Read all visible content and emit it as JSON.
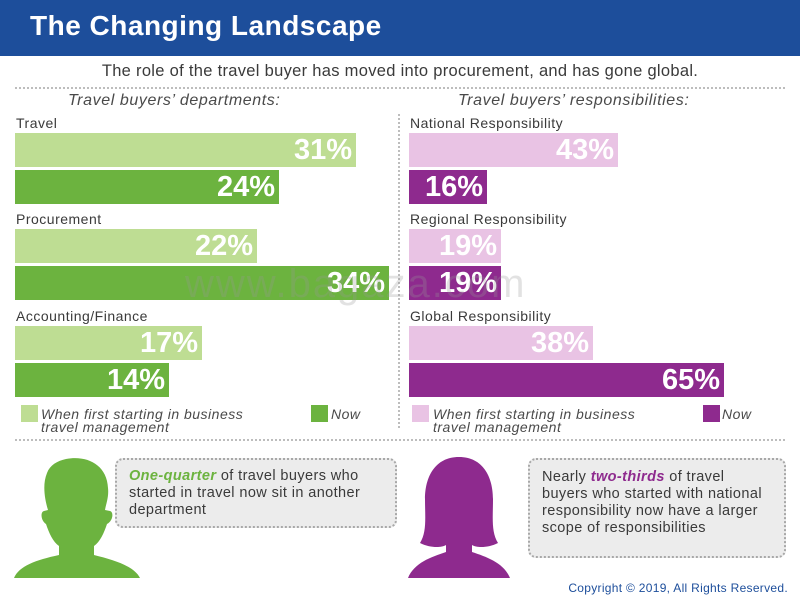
{
  "header": {
    "title": "The Changing Landscape"
  },
  "subtitle": "The role of the travel buyer has moved into procurement, and has gone global.",
  "colors": {
    "header_bg": "#1d4e9b",
    "green_light": "#bedd93",
    "green_dark": "#6cb33f",
    "pink_light": "#e9c3e4",
    "purple_dark": "#8e2a8e"
  },
  "chart_data": [
    {
      "type": "bar",
      "orientation": "horizontal",
      "title": "Travel buyers’ departments:",
      "categories": [
        "Travel",
        "Procurement",
        "Accounting/Finance"
      ],
      "series": [
        {
          "name": "When first starting in business travel management",
          "values": [
            31,
            22,
            17
          ],
          "labels": [
            "31%",
            "22%",
            "17%"
          ]
        },
        {
          "name": "Now",
          "values": [
            24,
            34,
            14
          ],
          "labels": [
            "24%",
            "34%",
            "14%"
          ]
        }
      ],
      "unit": "%",
      "xlim": [
        0,
        35
      ],
      "legend": "bottom"
    },
    {
      "type": "bar",
      "orientation": "horizontal",
      "title": "Travel buyers’ responsibilities:",
      "categories": [
        "National Responsibility",
        "Regional Responsibility",
        "Global Responsibility"
      ],
      "series": [
        {
          "name": "When first starting in business travel management",
          "values": [
            43,
            19,
            38
          ],
          "labels": [
            "43%",
            "19%",
            "38%"
          ]
        },
        {
          "name": "Now",
          "values": [
            16,
            19,
            65
          ],
          "labels": [
            "16%",
            "19%",
            "65%"
          ]
        }
      ],
      "unit": "%",
      "xlim": [
        0,
        65
      ],
      "legend": "bottom"
    }
  ],
  "legend": {
    "first_line1": "When first starting in business",
    "first_line2": "travel management",
    "now": "Now"
  },
  "watermark": "www.bagaza.com",
  "callouts": {
    "left": {
      "highlight": "One-quarter",
      "text": " of travel buyers who started in travel now sit in another department"
    },
    "right": {
      "prefix": "Nearly ",
      "highlight": "two-thirds",
      "text": " of travel buyers who started with national responsibility now have a larger scope of responsibilities"
    }
  },
  "icons": {
    "left": "male-silhouette-icon",
    "right": "female-silhouette-icon"
  },
  "copyright": "Copyright © 2019, All Rights Reserved."
}
